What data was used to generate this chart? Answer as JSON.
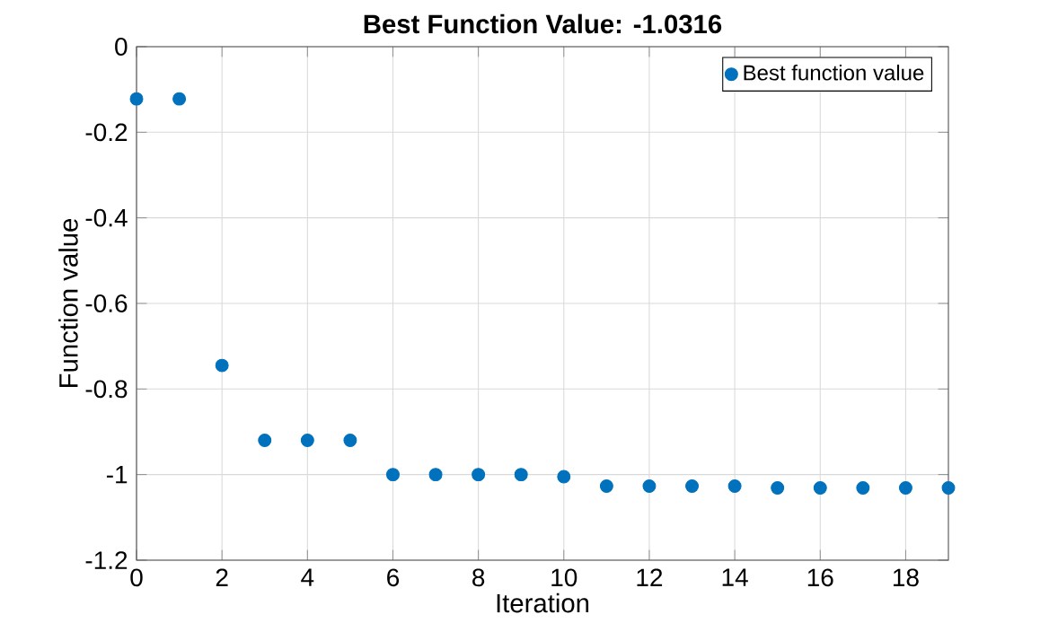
{
  "chart_data": {
    "type": "scatter",
    "title": "Best Function Value: -1.0316",
    "xlabel": "Iteration",
    "ylabel": "Function value",
    "x": [
      0,
      1,
      2,
      3,
      4,
      5,
      6,
      7,
      8,
      9,
      10,
      11,
      12,
      13,
      14,
      15,
      16,
      17,
      18,
      19
    ],
    "series": [
      {
        "name": "Best function value",
        "color": "#0072bd",
        "values": [
          -0.122,
          -0.122,
          -0.745,
          -0.92,
          -0.92,
          -0.92,
          -1.0,
          -1.0,
          -1.0,
          -1.0,
          -1.005,
          -1.027,
          -1.027,
          -1.027,
          -1.027,
          -1.031,
          -1.031,
          -1.031,
          -1.031,
          -1.031
        ]
      }
    ],
    "xlim": [
      0,
      19
    ],
    "ylim": [
      -1.2,
      0
    ],
    "xticks": [
      0,
      2,
      4,
      6,
      8,
      10,
      12,
      14,
      16,
      18
    ],
    "yticks": [
      -1.2,
      -1,
      -0.8,
      -0.6,
      -0.4,
      -0.2,
      0
    ],
    "grid": true,
    "legend": "top right"
  }
}
